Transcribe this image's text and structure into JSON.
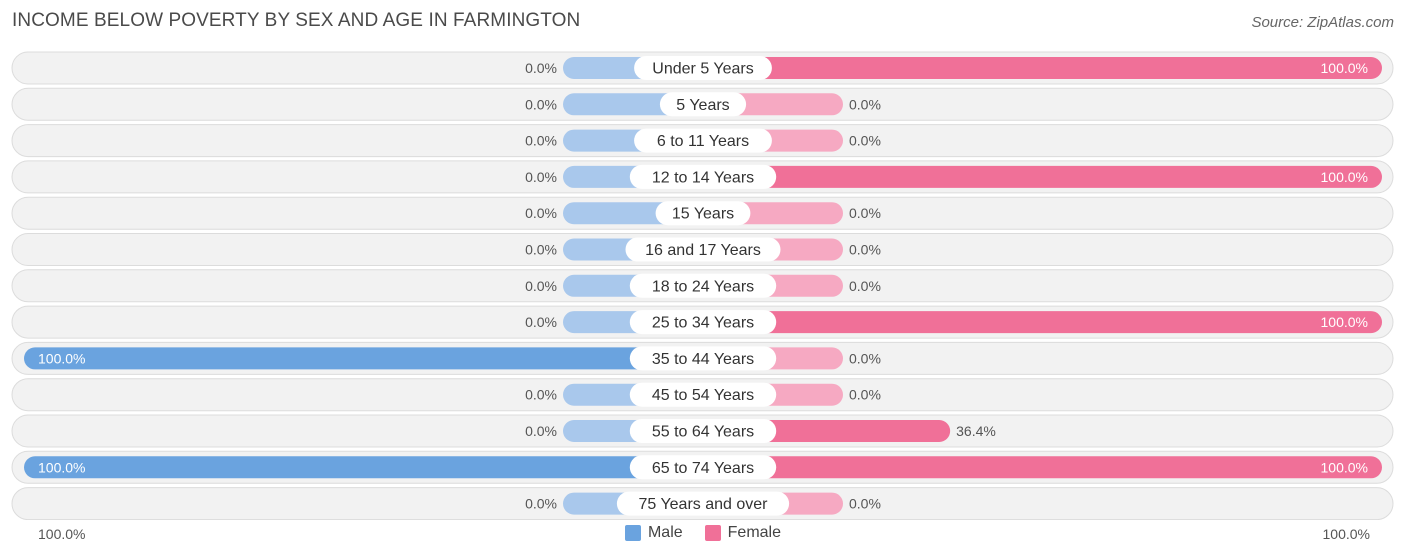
{
  "header": {
    "title": "INCOME BELOW POVERTY BY SEX AND AGE IN FARMINGTON",
    "source": "Source: ZipAtlas.com"
  },
  "colors": {
    "male_full": "#6aa3df",
    "male_light": "#a9c8ec",
    "female_full": "#f07098",
    "female_light": "#f6a9c2",
    "row_bg": "#f2f2f2",
    "row_border": "#dcdcdc"
  },
  "axis": {
    "left_label": "100.0%",
    "right_label": "100.0%"
  },
  "legend": {
    "male_label": "Male",
    "female_label": "Female"
  },
  "chart_data": {
    "type": "bar",
    "title": "INCOME BELOW POVERTY BY SEX AND AGE IN FARMINGTON",
    "orientation": "horizontal-diverging",
    "xlim": [
      0,
      100
    ],
    "categories": [
      "Under 5 Years",
      "5 Years",
      "6 to 11 Years",
      "12 to 14 Years",
      "15 Years",
      "16 and 17 Years",
      "18 to 24 Years",
      "25 to 34 Years",
      "35 to 44 Years",
      "45 to 54 Years",
      "55 to 64 Years",
      "65 to 74 Years",
      "75 Years and over"
    ],
    "series": [
      {
        "name": "Male",
        "values": [
          0,
          0,
          0,
          0,
          0,
          0,
          0,
          0,
          100,
          0,
          0,
          100,
          0
        ],
        "labels": [
          "0.0%",
          "0.0%",
          "0.0%",
          "0.0%",
          "0.0%",
          "0.0%",
          "0.0%",
          "0.0%",
          "100.0%",
          "0.0%",
          "0.0%",
          "100.0%",
          "0.0%"
        ]
      },
      {
        "name": "Female",
        "values": [
          100,
          0,
          0,
          100,
          0,
          0,
          0,
          100,
          0,
          0,
          36.4,
          100,
          0
        ],
        "labels": [
          "100.0%",
          "0.0%",
          "0.0%",
          "100.0%",
          "0.0%",
          "0.0%",
          "0.0%",
          "100.0%",
          "0.0%",
          "0.0%",
          "36.4%",
          "100.0%",
          "0.0%"
        ]
      }
    ],
    "legend_position": "bottom-center"
  }
}
